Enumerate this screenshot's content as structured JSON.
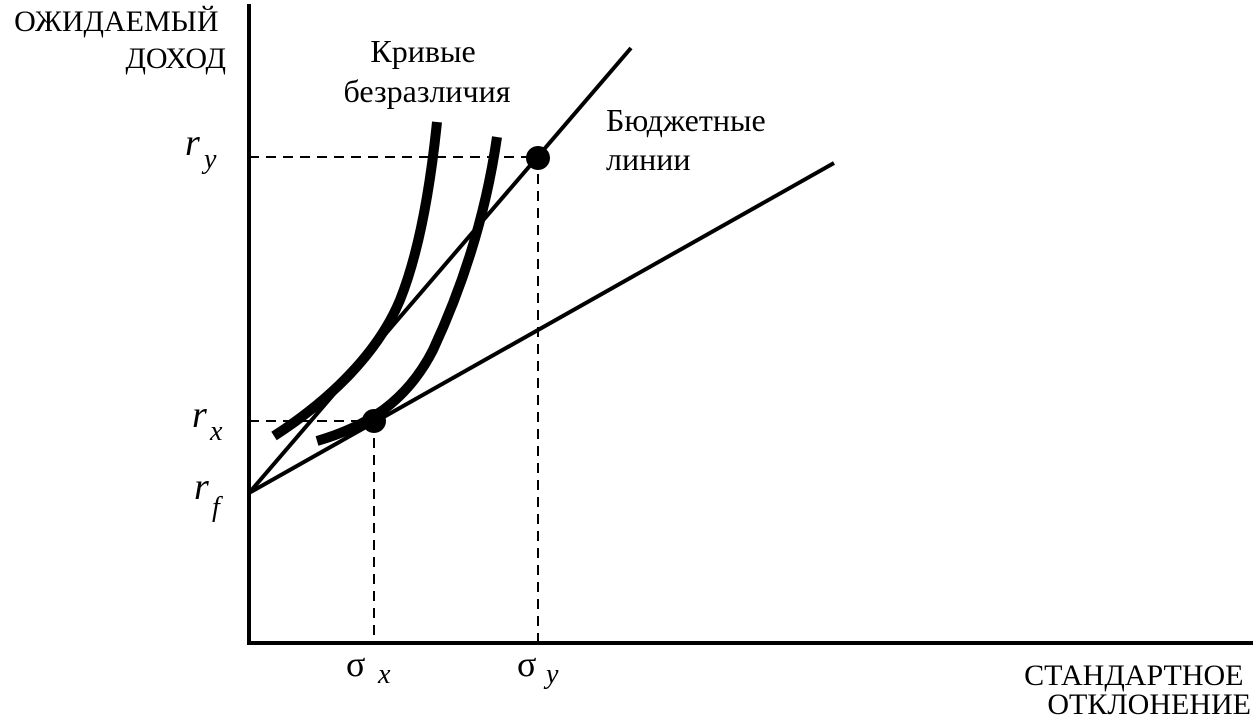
{
  "y_axis_title": [
    "ОЖИДАЕМЫЙ",
    "ДОХОД"
  ],
  "x_axis_title": [
    "СТАНДАРТНОЕ",
    "ОТКЛОНЕНИЕ"
  ],
  "indifference_label": [
    "Кривые",
    "безразличия"
  ],
  "budget_label": [
    "Бюджетные",
    "линии"
  ],
  "ticks": {
    "ry": {
      "main": "r",
      "sub": "y"
    },
    "rx": {
      "main": "r",
      "sub": "x"
    },
    "rf": {
      "main": "r",
      "sub": "f"
    },
    "sx": {
      "main": "σ",
      "sub": "x"
    },
    "sy": {
      "main": "σ",
      "sub": "y"
    }
  },
  "colors": {
    "ink": "#000000",
    "background": "#ffffff"
  }
}
